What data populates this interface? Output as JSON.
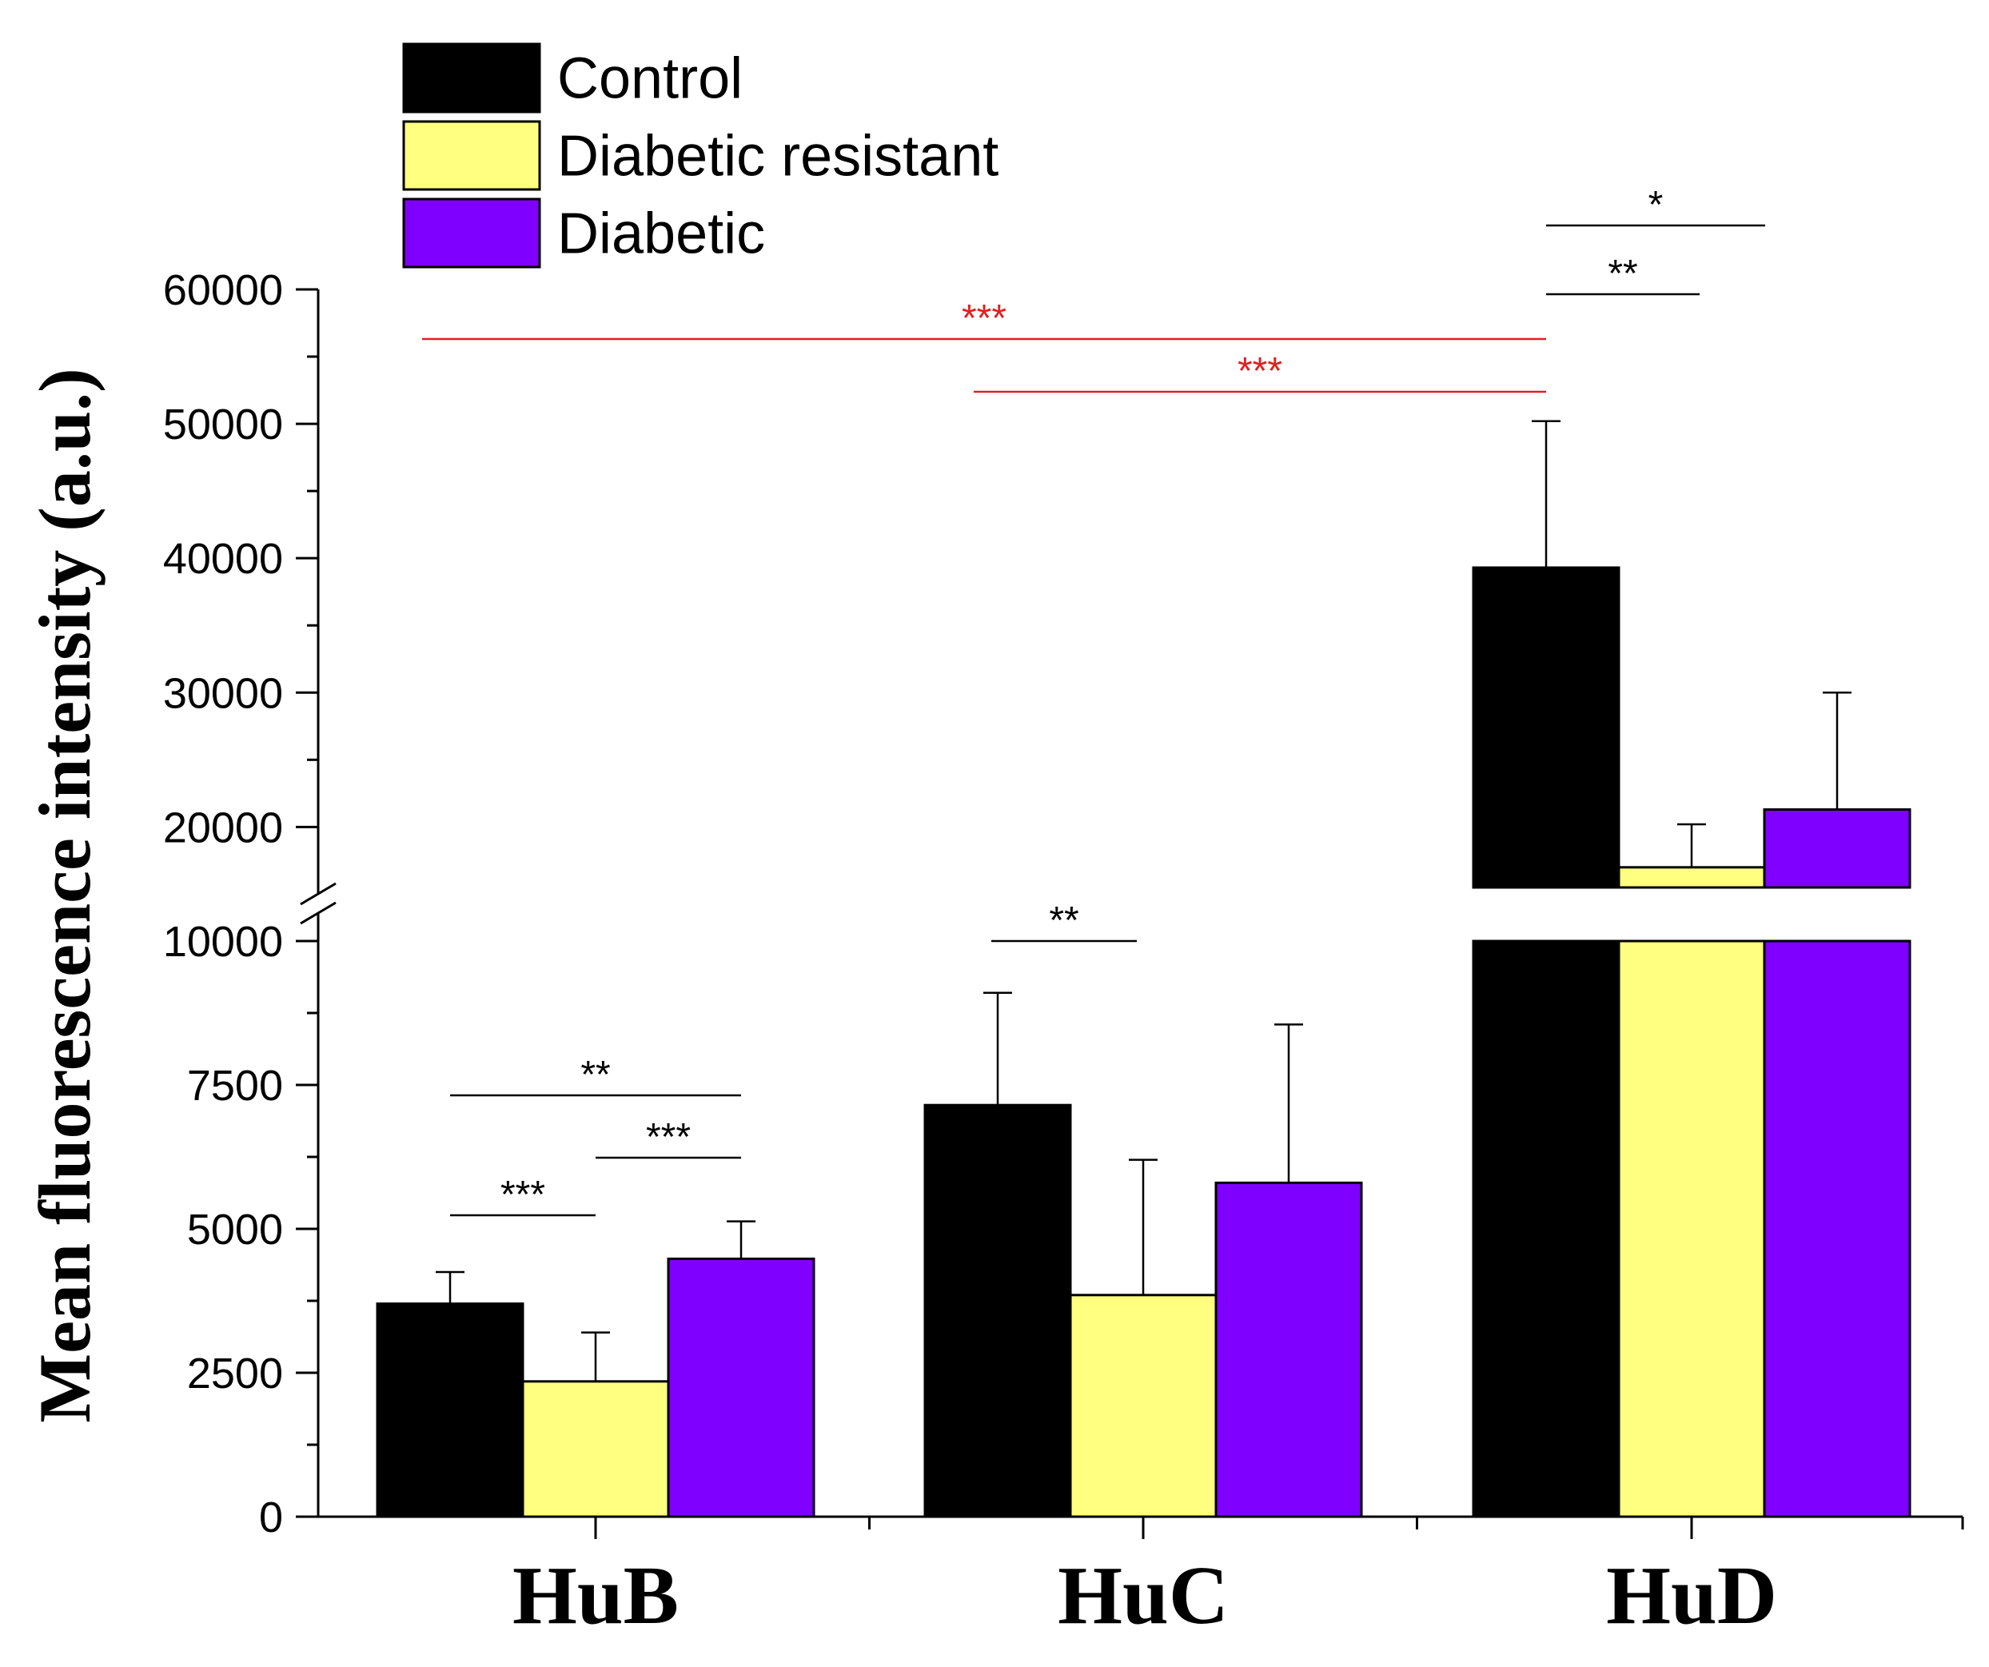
{
  "chart_data": {
    "type": "bar",
    "ylabel": "Mean fluorescence intensity (a.u.)",
    "xlabel": "",
    "categories": [
      "HuB",
      "HuC",
      "HuD"
    ],
    "axis_break": true,
    "lower_ylim": [
      0,
      10000
    ],
    "upper_ylim": [
      15500,
      60000
    ],
    "lower_ticks": [
      "0",
      "2500",
      "5000",
      "7500",
      "10000"
    ],
    "upper_ticks": [
      "20000",
      "30000",
      "40000",
      "50000",
      "60000"
    ],
    "legend_position": "top-left",
    "series": [
      {
        "name": "Control",
        "color": "#000000",
        "values": [
          3700,
          7150,
          39300
        ],
        "errors": [
          550,
          1950,
          10900
        ]
      },
      {
        "name": "Diabetic resistant",
        "color": "#ffff80",
        "values": [
          2350,
          3850,
          17000
        ],
        "errors": [
          850,
          2350,
          3200
        ]
      },
      {
        "name": "Diabetic",
        "color": "#8000ff",
        "values": [
          4480,
          5800,
          21300
        ],
        "errors": [
          650,
          2750,
          8700
        ]
      }
    ],
    "significance": [
      {
        "label": "***",
        "category": 0,
        "from": 0,
        "to": 1,
        "color": "#000000"
      },
      {
        "label": "***",
        "category": 0,
        "from": 1,
        "to": 2,
        "color": "#000000"
      },
      {
        "label": "**",
        "category": 0,
        "from": 0,
        "to": 2,
        "color": "#000000"
      },
      {
        "label": "**",
        "category": 1,
        "from": 0,
        "to": 1,
        "color": "#000000"
      },
      {
        "label": "**",
        "category": 2,
        "from": 0,
        "to": 1,
        "color": "#000000"
      },
      {
        "label": "*",
        "category": 2,
        "from": 0,
        "to": 2,
        "color": "#000000"
      },
      {
        "label": "***",
        "category": "HuB-HuD",
        "color": "#e02020"
      },
      {
        "label": "***",
        "category": "HuC-HuD",
        "color": "#e02020"
      }
    ]
  }
}
